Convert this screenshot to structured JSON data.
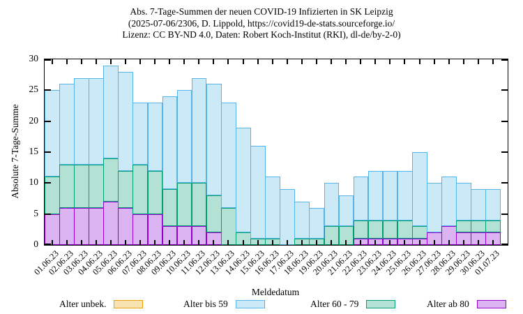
{
  "title_lines": [
    "Abs. 7-Tage-Summen der neuen COVID-19 Infizierten in SK Leipzig",
    "(2025-07-06/2306, D. Lippold, https://covid19-de-stats.sourceforge.io/",
    "Lizenz: CC BY-ND 4.0, Daten: Robert Koch-Institut (RKI), dl-de/by-2-0)"
  ],
  "chart_data": {
    "type": "bar",
    "stacked": true,
    "title": "Abs. 7-Tage-Summen der neuen COVID-19 Infizierten in SK Leipzig",
    "xlabel": "Meldedatum",
    "ylabel": "Absolute 7-Tage-Summe",
    "ylim": [
      0,
      30
    ],
    "y_ticks": [
      0,
      5,
      10,
      15,
      20,
      25,
      30
    ],
    "grid": false,
    "legend_position": "bottom",
    "categories": [
      "01.06.23",
      "02.06.23",
      "03.06.23",
      "04.06.23",
      "05.06.23",
      "06.06.23",
      "07.06.23",
      "08.06.23",
      "09.06.23",
      "10.06.23",
      "11.06.23",
      "12.06.23",
      "13.06.23",
      "14.06.23",
      "15.06.23",
      "16.06.23",
      "17.06.23",
      "18.06.23",
      "19.06.23",
      "20.06.23",
      "21.06.23",
      "22.06.23",
      "23.06.23",
      "24.06.23",
      "25.06.23",
      "26.06.23",
      "27.06.23",
      "28.06.23",
      "29.06.23",
      "30.06.23",
      "01.07.23"
    ],
    "series": [
      {
        "name": "Alter ab 80",
        "stroke": "#9400D3",
        "fill": "#DDB4F2",
        "values": [
          5,
          6,
          6,
          6,
          7,
          6,
          5,
          5,
          3,
          3,
          3,
          2,
          0,
          0,
          0,
          0,
          0,
          0,
          0,
          0,
          0,
          1,
          1,
          1,
          1,
          1,
          2,
          3,
          2,
          2,
          2
        ]
      },
      {
        "name": "Alter 60 - 79",
        "stroke": "#009E73",
        "fill": "#B3E2D5",
        "values": [
          6,
          7,
          7,
          7,
          7,
          6,
          8,
          7,
          6,
          7,
          7,
          6,
          6,
          2,
          1,
          1,
          0,
          1,
          1,
          3,
          3,
          3,
          3,
          3,
          3,
          2,
          0,
          0,
          2,
          2,
          2
        ]
      },
      {
        "name": "Alter bis 59",
        "stroke": "#56B4E9",
        "fill": "#CCE9F8",
        "values": [
          14,
          13,
          14,
          14,
          15,
          16,
          10,
          11,
          15,
          15,
          17,
          18,
          17,
          17,
          15,
          10,
          9,
          6,
          5,
          7,
          5,
          7,
          8,
          8,
          8,
          12,
          8,
          8,
          6,
          5,
          5
        ]
      },
      {
        "name": "Alter unbek.",
        "stroke": "#E69F00",
        "fill": "#F7E2B2",
        "values": [
          0,
          0,
          0,
          0,
          0,
          0,
          0,
          0,
          0,
          0,
          0,
          0,
          0,
          0,
          0,
          0,
          0,
          0,
          0,
          0,
          0,
          0,
          0,
          0,
          0,
          0,
          0,
          0,
          0,
          0,
          0
        ]
      }
    ],
    "totals": [
      25,
      26,
      27,
      27,
      29,
      28,
      23,
      23,
      24,
      25,
      27,
      26,
      23,
      19,
      16,
      11,
      9,
      7,
      6,
      10,
      8,
      11,
      12,
      12,
      12,
      15,
      10,
      11,
      10,
      9,
      9
    ],
    "legend": [
      {
        "label": "Alter unbek.",
        "stroke": "#E69F00",
        "fill": "#F7E2B2"
      },
      {
        "label": "Alter bis 59",
        "stroke": "#56B4E9",
        "fill": "#CCE9F8"
      },
      {
        "label": "Alter 60 - 79",
        "stroke": "#009E73",
        "fill": "#B3E2D5"
      },
      {
        "label": "Alter ab 80",
        "stroke": "#9400D3",
        "fill": "#DDB4F2"
      }
    ]
  }
}
